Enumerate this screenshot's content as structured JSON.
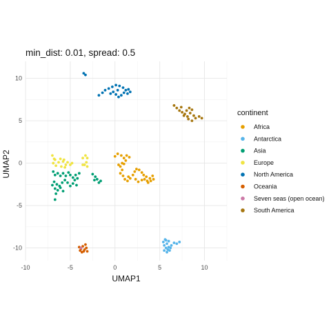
{
  "chart_data": {
    "type": "scatter",
    "title": "min_dist: 0.01, spread: 0.5",
    "xlabel": "UMAP1",
    "ylabel": "UMAP2",
    "xlim": [
      -10,
      12.5
    ],
    "ylim": [
      -11.5,
      12
    ],
    "x_ticks": [
      -10,
      -5,
      0,
      5,
      10
    ],
    "y_ticks": [
      -10,
      -5,
      0,
      5,
      10
    ],
    "grid": true,
    "legend_position": "right",
    "legend_title": "continent",
    "series": [
      {
        "name": "Africa",
        "color": "#E69F00",
        "points": [
          [
            0.0,
            0.8
          ],
          [
            0.3,
            1.1
          ],
          [
            0.7,
            0.9
          ],
          [
            1.0,
            0.6
          ],
          [
            1.3,
            0.9
          ],
          [
            1.6,
            0.7
          ],
          [
            1.2,
            0.3
          ],
          [
            0.8,
            0.0
          ],
          [
            0.6,
            -0.4
          ],
          [
            0.8,
            -0.8
          ],
          [
            0.6,
            -1.2
          ],
          [
            0.9,
            -1.5
          ],
          [
            1.1,
            -1.9
          ],
          [
            1.4,
            -2.1
          ],
          [
            1.7,
            -1.8
          ],
          [
            2.0,
            -1.4
          ],
          [
            2.2,
            -1.0
          ],
          [
            2.4,
            -0.7
          ],
          [
            2.7,
            -0.8
          ],
          [
            3.0,
            -1.1
          ],
          [
            3.2,
            -1.4
          ],
          [
            3.5,
            -1.6
          ],
          [
            3.3,
            -1.9
          ],
          [
            3.0,
            -2.0
          ],
          [
            3.6,
            -2.1
          ],
          [
            3.9,
            -1.8
          ],
          [
            4.2,
            -1.5
          ],
          [
            4.3,
            -1.9
          ],
          [
            4.0,
            -2.1
          ],
          [
            3.7,
            -2.3
          ],
          [
            1.5,
            -1.6
          ],
          [
            2.3,
            -1.9
          ],
          [
            2.6,
            -2.2
          ],
          [
            0.4,
            -0.2
          ],
          [
            1.0,
            -0.1
          ]
        ]
      },
      {
        "name": "Antarctica",
        "color": "#56B4E9",
        "points": [
          [
            5.4,
            -9.3
          ],
          [
            5.7,
            -9.1
          ],
          [
            6.0,
            -9.2
          ],
          [
            5.8,
            -9.5
          ],
          [
            5.5,
            -9.7
          ],
          [
            5.7,
            -10.0
          ],
          [
            6.0,
            -9.9
          ],
          [
            5.5,
            -10.3
          ],
          [
            5.8,
            -10.5
          ],
          [
            6.1,
            -10.3
          ],
          [
            6.3,
            -9.7
          ],
          [
            6.6,
            -9.4
          ],
          [
            6.9,
            -9.5
          ],
          [
            7.2,
            -9.3
          ],
          [
            5.6,
            -9.0
          ],
          [
            6.2,
            -10.0
          ],
          [
            5.9,
            -10.2
          ]
        ]
      },
      {
        "name": "Asia",
        "color": "#009E73",
        "points": [
          [
            -6.9,
            -1.0
          ],
          [
            -6.7,
            -1.4
          ],
          [
            -6.4,
            -1.2
          ],
          [
            -6.1,
            -1.5
          ],
          [
            -5.8,
            -1.2
          ],
          [
            -5.5,
            -1.5
          ],
          [
            -5.2,
            -1.1
          ],
          [
            -5.0,
            -1.4
          ],
          [
            -4.7,
            -1.7
          ],
          [
            -4.5,
            -2.0
          ],
          [
            -4.2,
            -1.8
          ],
          [
            -4.4,
            -1.4
          ],
          [
            -4.7,
            -2.4
          ],
          [
            -5.0,
            -2.7
          ],
          [
            -5.3,
            -2.3
          ],
          [
            -5.6,
            -2.0
          ],
          [
            -5.9,
            -2.3
          ],
          [
            -6.2,
            -2.7
          ],
          [
            -6.5,
            -2.5
          ],
          [
            -6.8,
            -2.2
          ],
          [
            -7.0,
            -2.6
          ],
          [
            -6.7,
            -3.0
          ],
          [
            -6.4,
            -3.2
          ],
          [
            -6.1,
            -2.9
          ],
          [
            -5.8,
            -3.3
          ],
          [
            -6.6,
            -3.6
          ],
          [
            -6.7,
            -4.3
          ],
          [
            -4.3,
            -2.6
          ],
          [
            -2.5,
            -1.3
          ],
          [
            -2.2,
            -1.6
          ],
          [
            -2.0,
            -1.9
          ],
          [
            -1.8,
            -2.3
          ],
          [
            -1.6,
            -2.1
          ],
          [
            -2.3,
            -2.0
          ],
          [
            -4.0,
            -1.2
          ]
        ]
      },
      {
        "name": "Europe",
        "color": "#F0E442",
        "points": [
          [
            -7.0,
            0.9
          ],
          [
            -6.8,
            0.5
          ],
          [
            -6.9,
            0.0
          ],
          [
            -6.6,
            -0.3
          ],
          [
            -6.3,
            0.1
          ],
          [
            -6.1,
            0.5
          ],
          [
            -5.8,
            0.2
          ],
          [
            -5.5,
            -0.2
          ],
          [
            -5.3,
            0.1
          ],
          [
            -5.0,
            -0.2
          ],
          [
            -4.8,
            0.0
          ],
          [
            -5.6,
            -0.5
          ],
          [
            -6.0,
            -0.4
          ],
          [
            -6.7,
            0.4
          ],
          [
            -3.6,
            0.6
          ],
          [
            -3.3,
            0.9
          ],
          [
            -3.1,
            0.6
          ],
          [
            -3.2,
            0.1
          ],
          [
            -3.4,
            -0.2
          ],
          [
            -3.1,
            -0.4
          ],
          [
            -3.6,
            -0.2
          ],
          [
            -5.7,
            0.4
          ]
        ]
      },
      {
        "name": "North America",
        "color": "#0072B2",
        "points": [
          [
            -3.5,
            10.6
          ],
          [
            -3.3,
            10.4
          ],
          [
            -1.8,
            8.0
          ],
          [
            -1.4,
            8.3
          ],
          [
            -1.1,
            8.6
          ],
          [
            -0.7,
            8.8
          ],
          [
            -0.3,
            9.0
          ],
          [
            0.1,
            9.2
          ],
          [
            0.5,
            9.1
          ],
          [
            0.9,
            8.9
          ],
          [
            1.2,
            8.6
          ],
          [
            1.0,
            8.3
          ],
          [
            0.7,
            8.0
          ],
          [
            0.4,
            7.8
          ],
          [
            0.1,
            8.1
          ],
          [
            -0.2,
            8.4
          ],
          [
            1.4,
            8.2
          ],
          [
            1.7,
            8.4
          ],
          [
            1.5,
            8.7
          ],
          [
            0.3,
            8.6
          ],
          [
            -0.5,
            8.2
          ]
        ]
      },
      {
        "name": "Oceania",
        "color": "#D55E00",
        "points": [
          [
            -4.0,
            -9.9
          ],
          [
            -3.8,
            -10.1
          ],
          [
            -3.6,
            -9.8
          ],
          [
            -3.4,
            -10.2
          ],
          [
            -3.2,
            -10.0
          ],
          [
            -3.5,
            -10.4
          ],
          [
            -3.7,
            -10.5
          ],
          [
            -3.9,
            -10.3
          ],
          [
            -3.3,
            -9.6
          ],
          [
            -3.1,
            -10.4
          ]
        ]
      },
      {
        "name": "Seven seas (open ocean)",
        "color": "#CC79A7",
        "points": [
          [
            -3.8,
            -10.0
          ]
        ]
      },
      {
        "name": "South America",
        "color": "#A6760F",
        "points": [
          [
            6.6,
            6.8
          ],
          [
            6.9,
            6.5
          ],
          [
            7.2,
            6.2
          ],
          [
            7.5,
            6.0
          ],
          [
            7.8,
            5.8
          ],
          [
            8.1,
            5.5
          ],
          [
            8.4,
            5.9
          ],
          [
            8.6,
            6.3
          ],
          [
            8.3,
            6.5
          ],
          [
            8.0,
            6.2
          ],
          [
            7.7,
            5.6
          ],
          [
            8.2,
            5.2
          ],
          [
            8.6,
            5.0
          ],
          [
            9.0,
            5.3
          ],
          [
            9.4,
            5.5
          ],
          [
            9.7,
            5.3
          ],
          [
            7.4,
            6.6
          ],
          [
            8.8,
            5.6
          ]
        ]
      }
    ]
  }
}
